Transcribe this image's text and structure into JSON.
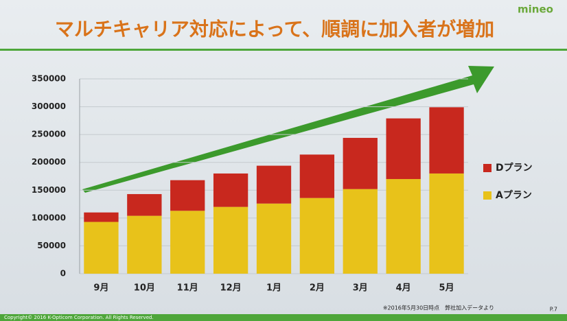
{
  "chart_data": {
    "type": "bar",
    "stacked": true,
    "title": "マルチキャリア対応によって、順調に加入者が増加",
    "categories": [
      "9月",
      "10月",
      "11月",
      "12月",
      "1月",
      "2月",
      "3月",
      "4月",
      "5月"
    ],
    "series": [
      {
        "name": "Aプラン",
        "color": "#e8c21a",
        "values": [
          93000,
          104000,
          113000,
          120000,
          126000,
          136000,
          152000,
          170000,
          180000
        ]
      },
      {
        "name": "Dプラン",
        "color": "#c8281e",
        "values": [
          17000,
          39000,
          55000,
          60000,
          68000,
          78000,
          92000,
          109000,
          119000
        ]
      }
    ],
    "ylim": [
      0,
      350000
    ],
    "yticks": [
      0,
      50000,
      100000,
      150000,
      200000,
      250000,
      300000,
      350000
    ],
    "grid": true
  },
  "slide": {
    "logo": "mineo",
    "footnote": "※2016年5月30日時点　弊社加入データより",
    "page": "P.7",
    "copyright": "Copyright© 2016 K-Opticom Corporation. All Rights Reserved."
  }
}
